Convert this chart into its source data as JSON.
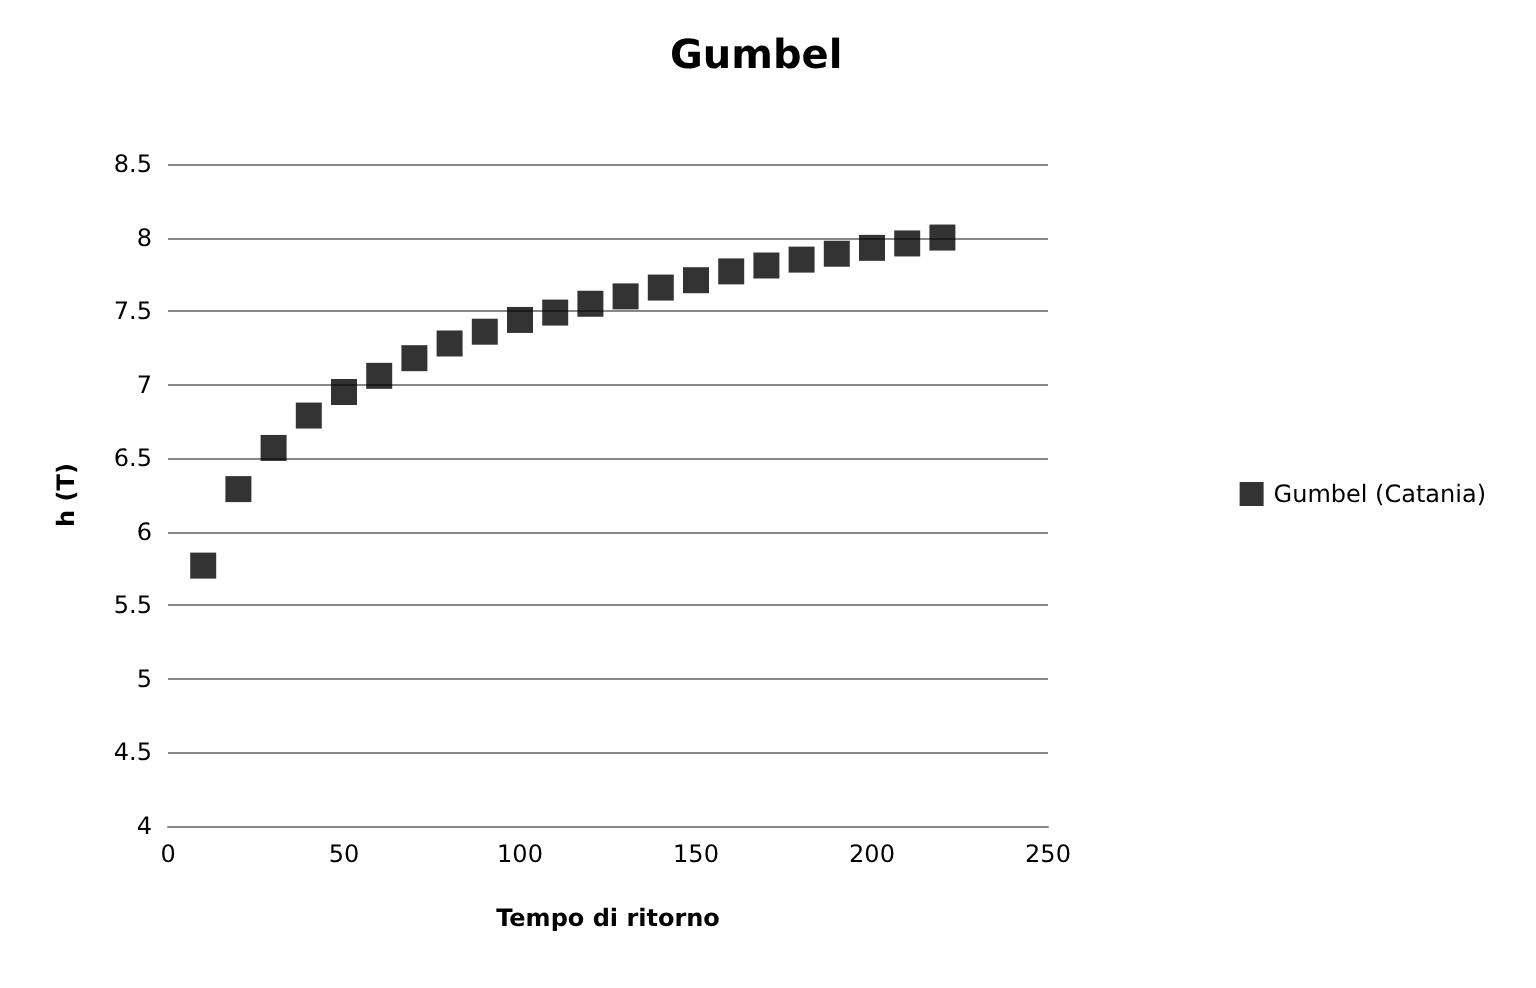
{
  "chart_data": {
    "type": "scatter",
    "title": "Gumbel",
    "xlabel": "Tempo di ritorno",
    "ylabel": "h (T)",
    "x": [
      10,
      20,
      30,
      40,
      50,
      60,
      70,
      80,
      90,
      100,
      110,
      120,
      130,
      140,
      150,
      160,
      170,
      180,
      190,
      200,
      210,
      220
    ],
    "series": [
      {
        "name": "Gumbel (Catania)",
        "color": "#000000",
        "values": [
          5.77,
          6.29,
          6.57,
          6.79,
          6.95,
          7.06,
          7.18,
          7.28,
          7.36,
          7.44,
          7.49,
          7.55,
          7.6,
          7.66,
          7.71,
          7.77,
          7.81,
          7.85,
          7.89,
          7.93,
          7.96,
          8.0
        ]
      }
    ],
    "xlim": [
      0,
      250
    ],
    "xticks": [
      0,
      50,
      100,
      150,
      200,
      250
    ],
    "ylim": [
      4,
      8.5
    ],
    "yticks": [
      4,
      4.5,
      5,
      5.5,
      6,
      6.5,
      7,
      7.5,
      8,
      8.5
    ],
    "grid": "y",
    "legend": "right",
    "marker": "square"
  }
}
